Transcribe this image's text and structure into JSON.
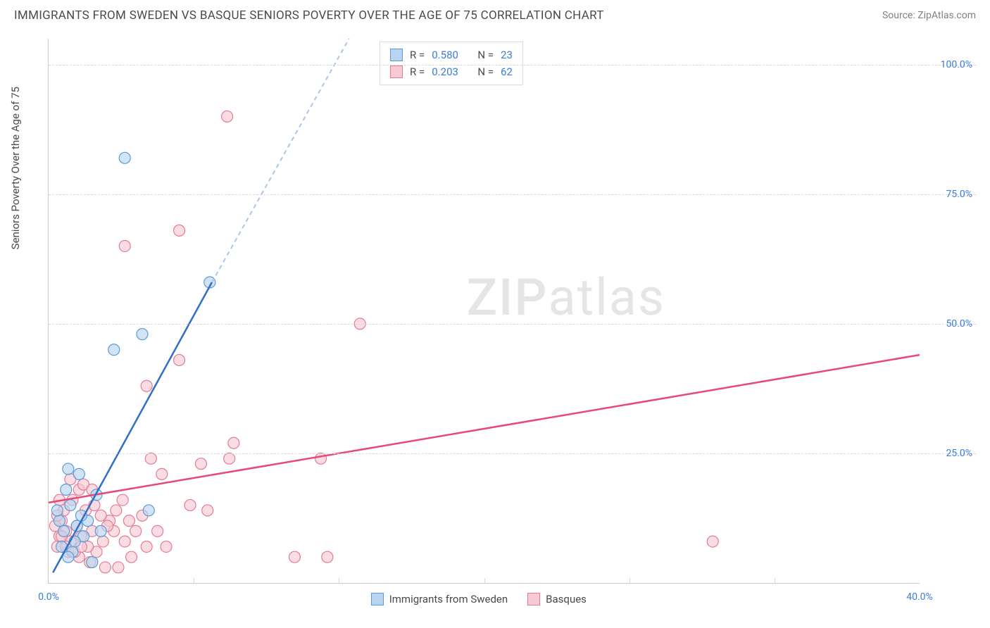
{
  "header": {
    "title": "IMMIGRANTS FROM SWEDEN VS BASQUE SENIORS POVERTY OVER THE AGE OF 75 CORRELATION CHART",
    "source": "Source: ZipAtlas.com"
  },
  "chart": {
    "type": "scatter",
    "y_label": "Seniors Poverty Over the Age of 75",
    "watermark": "ZIPatlas",
    "xlim": [
      0,
      40
    ],
    "ylim": [
      0,
      105
    ],
    "x_ticks": [
      {
        "v": 0,
        "label": "0.0%"
      },
      {
        "v": 40,
        "label": "40.0%"
      }
    ],
    "x_minor_ticks": [
      6.67,
      13.33,
      20,
      26.67,
      33.33
    ],
    "y_ticks": [
      {
        "v": 25,
        "label": "25.0%"
      },
      {
        "v": 50,
        "label": "50.0%"
      },
      {
        "v": 75,
        "label": "75.0%"
      },
      {
        "v": 100,
        "label": "100.0%"
      }
    ],
    "background_color": "#ffffff",
    "grid_color": "#d8d8d8",
    "axis_color": "#c9c9c9",
    "tick_label_color": "#3b7dd8",
    "series": [
      {
        "name": "Immigrants from Sweden",
        "color_fill": "#b8d4f0",
        "color_stroke": "#5a9bd5",
        "trend_color": "#2f6fc9",
        "trend_dash_color": "#a9c6ea",
        "R": "0.580",
        "N": "23",
        "marker_radius": 8,
        "trend_solid": {
          "x1": 0.2,
          "y1": 2,
          "x2": 7.5,
          "y2": 58
        },
        "trend_dash": {
          "x1": 7.5,
          "y1": 58,
          "x2": 13.8,
          "y2": 105
        },
        "points": [
          {
            "x": 3.5,
            "y": 82
          },
          {
            "x": 7.4,
            "y": 58
          },
          {
            "x": 3.0,
            "y": 45
          },
          {
            "x": 4.3,
            "y": 48
          },
          {
            "x": 4.6,
            "y": 14
          },
          {
            "x": 0.9,
            "y": 22
          },
          {
            "x": 1.4,
            "y": 21
          },
          {
            "x": 0.5,
            "y": 12
          },
          {
            "x": 0.7,
            "y": 10
          },
          {
            "x": 1.0,
            "y": 15
          },
          {
            "x": 1.3,
            "y": 11
          },
          {
            "x": 1.6,
            "y": 9
          },
          {
            "x": 0.6,
            "y": 7
          },
          {
            "x": 1.1,
            "y": 6
          },
          {
            "x": 2.0,
            "y": 4
          },
          {
            "x": 1.8,
            "y": 12
          },
          {
            "x": 2.2,
            "y": 17
          },
          {
            "x": 0.4,
            "y": 14
          },
          {
            "x": 0.8,
            "y": 18
          },
          {
            "x": 1.2,
            "y": 8
          },
          {
            "x": 0.9,
            "y": 5
          },
          {
            "x": 1.5,
            "y": 13
          },
          {
            "x": 2.4,
            "y": 10
          }
        ]
      },
      {
        "name": "Basques",
        "color_fill": "#f7c9d4",
        "color_stroke": "#e37b95",
        "trend_color": "#e6487a",
        "R": "0.203",
        "N": "62",
        "marker_radius": 8,
        "trend_solid": {
          "x1": 0,
          "y1": 15.5,
          "x2": 40,
          "y2": 44
        },
        "points": [
          {
            "x": 8.2,
            "y": 90
          },
          {
            "x": 6.0,
            "y": 68
          },
          {
            "x": 3.5,
            "y": 65
          },
          {
            "x": 14.3,
            "y": 50
          },
          {
            "x": 6.0,
            "y": 43
          },
          {
            "x": 4.5,
            "y": 38
          },
          {
            "x": 8.5,
            "y": 27
          },
          {
            "x": 8.3,
            "y": 24
          },
          {
            "x": 7.0,
            "y": 23
          },
          {
            "x": 4.7,
            "y": 24
          },
          {
            "x": 12.5,
            "y": 24
          },
          {
            "x": 5.2,
            "y": 21
          },
          {
            "x": 7.3,
            "y": 14
          },
          {
            "x": 6.5,
            "y": 15
          },
          {
            "x": 30.5,
            "y": 8
          },
          {
            "x": 11.3,
            "y": 5
          },
          {
            "x": 12.8,
            "y": 5
          },
          {
            "x": 4.5,
            "y": 7
          },
          {
            "x": 5.4,
            "y": 7
          },
          {
            "x": 3.8,
            "y": 5
          },
          {
            "x": 3.5,
            "y": 8
          },
          {
            "x": 3.0,
            "y": 10
          },
          {
            "x": 2.8,
            "y": 12
          },
          {
            "x": 2.5,
            "y": 8
          },
          {
            "x": 2.2,
            "y": 6
          },
          {
            "x": 2.0,
            "y": 10
          },
          {
            "x": 1.8,
            "y": 7
          },
          {
            "x": 1.5,
            "y": 9
          },
          {
            "x": 1.3,
            "y": 11
          },
          {
            "x": 1.0,
            "y": 8
          },
          {
            "x": 0.8,
            "y": 10
          },
          {
            "x": 0.6,
            "y": 12
          },
          {
            "x": 0.5,
            "y": 9
          },
          {
            "x": 0.4,
            "y": 7
          },
          {
            "x": 0.3,
            "y": 11
          },
          {
            "x": 3.2,
            "y": 3
          },
          {
            "x": 2.6,
            "y": 3
          },
          {
            "x": 1.9,
            "y": 4
          },
          {
            "x": 1.4,
            "y": 5
          },
          {
            "x": 0.9,
            "y": 6
          },
          {
            "x": 0.7,
            "y": 14
          },
          {
            "x": 1.1,
            "y": 16
          },
          {
            "x": 1.4,
            "y": 18
          },
          {
            "x": 1.7,
            "y": 14
          },
          {
            "x": 2.1,
            "y": 15
          },
          {
            "x": 2.4,
            "y": 13
          },
          {
            "x": 2.7,
            "y": 11
          },
          {
            "x": 3.1,
            "y": 14
          },
          {
            "x": 3.4,
            "y": 16
          },
          {
            "x": 3.7,
            "y": 12
          },
          {
            "x": 4.0,
            "y": 10
          },
          {
            "x": 4.3,
            "y": 13
          },
          {
            "x": 1.0,
            "y": 20
          },
          {
            "x": 1.6,
            "y": 19
          },
          {
            "x": 2.0,
            "y": 18
          },
          {
            "x": 0.5,
            "y": 16
          },
          {
            "x": 0.4,
            "y": 13
          },
          {
            "x": 0.6,
            "y": 9
          },
          {
            "x": 0.8,
            "y": 7
          },
          {
            "x": 1.2,
            "y": 6
          },
          {
            "x": 1.5,
            "y": 7
          },
          {
            "x": 5.0,
            "y": 10
          }
        ]
      }
    ],
    "corr_legend_labels": {
      "R": "R =",
      "N": "N ="
    },
    "bottom_legend_labels": [
      "Immigrants from Sweden",
      "Basques"
    ]
  }
}
